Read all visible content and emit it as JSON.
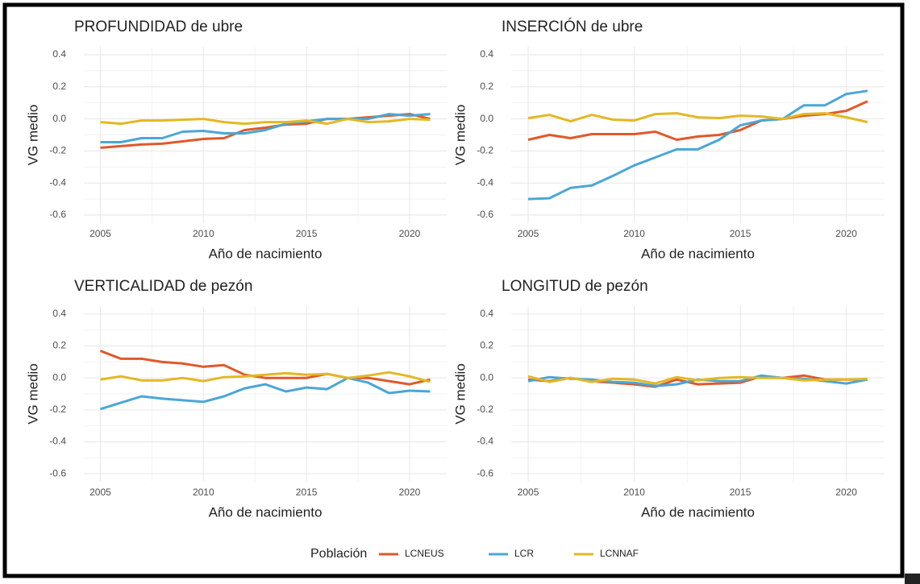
{
  "chart_data": [
    {
      "type": "line",
      "title": "PROFUNDIDAD de ubre",
      "xlabel": "Año de nacimiento",
      "ylabel": "VG medio",
      "x": [
        2005,
        2006,
        2007,
        2008,
        2009,
        2010,
        2011,
        2012,
        2013,
        2014,
        2015,
        2016,
        2017,
        2018,
        2019,
        2020,
        2021
      ],
      "xlim": [
        2004.2,
        2021.8
      ],
      "xticks": [
        2005,
        2010,
        2015,
        2020
      ],
      "ylim": [
        -0.65,
        0.45
      ],
      "yticks": [
        0.4,
        0.2,
        {
          "value": 0,
          "label": "0.0"
        },
        -0.2,
        -0.4,
        -0.6
      ],
      "grid": true,
      "minor_grid": true,
      "series": [
        {
          "values": [
            -0.18,
            -0.17,
            -0.16,
            -0.155,
            -0.14,
            -0.125,
            -0.12,
            -0.07,
            -0.055,
            -0.035,
            -0.03,
            0.0,
            0.0,
            0.01,
            0.02,
            0.03,
            0.0
          ]
        },
        {
          "values": [
            -0.145,
            -0.145,
            -0.12,
            -0.12,
            -0.08,
            -0.075,
            -0.09,
            -0.09,
            -0.07,
            -0.03,
            -0.015,
            0.0,
            0.0,
            0.0,
            0.03,
            0.02,
            0.03
          ]
        },
        {
          "values": [
            -0.02,
            -0.03,
            -0.01,
            -0.01,
            -0.005,
            0.0,
            -0.02,
            -0.03,
            -0.02,
            -0.02,
            -0.01,
            -0.03,
            0.0,
            -0.02,
            -0.015,
            0.0,
            -0.005
          ]
        }
      ]
    },
    {
      "type": "line",
      "title": "INSERCIÓN de ubre",
      "xlabel": "Año de nacimiento",
      "ylabel": "VG medio",
      "x": [
        2005,
        2006,
        2007,
        2008,
        2009,
        2010,
        2011,
        2012,
        2013,
        2014,
        2015,
        2016,
        2017,
        2018,
        2019,
        2020,
        2021
      ],
      "xlim": [
        2004.2,
        2021.8
      ],
      "xticks": [
        2005,
        2010,
        2015,
        2020
      ],
      "ylim": [
        -0.65,
        0.45
      ],
      "yticks": [
        0.4,
        0.2,
        {
          "value": 0,
          "label": "0.0"
        },
        -0.2,
        -0.4,
        -0.6
      ],
      "grid": true,
      "minor_grid": true,
      "series": [
        {
          "values": [
            -0.13,
            -0.1,
            -0.12,
            -0.095,
            -0.095,
            -0.095,
            -0.08,
            -0.13,
            -0.11,
            -0.1,
            -0.07,
            -0.01,
            0.0,
            0.02,
            0.03,
            0.05,
            0.11
          ]
        },
        {
          "values": [
            -0.5,
            -0.495,
            -0.43,
            -0.415,
            -0.355,
            -0.29,
            -0.24,
            -0.19,
            -0.19,
            -0.13,
            -0.04,
            -0.01,
            0.0,
            0.085,
            0.085,
            0.155,
            0.175
          ]
        },
        {
          "values": [
            0.005,
            0.025,
            -0.015,
            0.025,
            -0.005,
            -0.01,
            0.03,
            0.035,
            0.01,
            0.005,
            0.02,
            0.015,
            0.0,
            0.03,
            0.035,
            0.01,
            -0.02
          ]
        }
      ]
    },
    {
      "type": "line",
      "title": "VERTICALIDAD de pezón",
      "xlabel": "Año de nacimiento",
      "ylabel": "VG medio",
      "x": [
        2005,
        2006,
        2007,
        2008,
        2009,
        2010,
        2011,
        2012,
        2013,
        2014,
        2015,
        2016,
        2017,
        2018,
        2019,
        2020,
        2021
      ],
      "xlim": [
        2004.2,
        2021.8
      ],
      "xticks": [
        2005,
        2010,
        2015,
        2020
      ],
      "ylim": [
        -0.65,
        0.45
      ],
      "yticks": [
        0.4,
        0.2,
        {
          "value": 0,
          "label": "0.0"
        },
        -0.2,
        -0.4,
        -0.6
      ],
      "grid": true,
      "minor_grid": true,
      "series": [
        {
          "values": [
            0.17,
            0.12,
            0.12,
            0.1,
            0.09,
            0.07,
            0.08,
            0.02,
            0.0,
            0.0,
            0.0,
            0.025,
            0.0,
            0.0,
            -0.02,
            -0.04,
            -0.01
          ]
        },
        {
          "values": [
            -0.195,
            -0.155,
            -0.115,
            -0.13,
            -0.14,
            -0.15,
            -0.115,
            -0.065,
            -0.04,
            -0.085,
            -0.06,
            -0.07,
            0.0,
            -0.03,
            -0.095,
            -0.08,
            -0.085
          ]
        },
        {
          "values": [
            -0.01,
            0.01,
            -0.015,
            -0.015,
            0.0,
            -0.02,
            0.005,
            0.01,
            0.02,
            0.03,
            0.02,
            0.025,
            0.0,
            0.015,
            0.035,
            0.01,
            -0.025
          ]
        }
      ]
    },
    {
      "type": "line",
      "title": "LONGITUD de pezón",
      "xlabel": "Año de nacimiento",
      "ylabel": "VG medio",
      "x": [
        2005,
        2006,
        2007,
        2008,
        2009,
        2010,
        2011,
        2012,
        2013,
        2014,
        2015,
        2016,
        2017,
        2018,
        2019,
        2020,
        2021
      ],
      "xlim": [
        2004.2,
        2021.8
      ],
      "xticks": [
        2005,
        2010,
        2015,
        2020
      ],
      "ylim": [
        -0.65,
        0.45
      ],
      "yticks": [
        0.4,
        0.2,
        {
          "value": 0,
          "label": "0.0"
        },
        -0.2,
        -0.4,
        -0.6
      ],
      "grid": true,
      "minor_grid": true,
      "series": [
        {
          "values": [
            -0.01,
            -0.02,
            0.0,
            -0.02,
            -0.03,
            -0.04,
            -0.055,
            -0.01,
            -0.04,
            -0.035,
            -0.03,
            0.01,
            0.0,
            0.015,
            -0.01,
            -0.01,
            -0.01
          ]
        },
        {
          "values": [
            -0.02,
            0.005,
            -0.005,
            -0.01,
            -0.025,
            -0.03,
            -0.05,
            -0.04,
            -0.01,
            -0.02,
            -0.02,
            0.015,
            0.0,
            -0.005,
            -0.02,
            -0.035,
            -0.01
          ]
        },
        {
          "values": [
            0.01,
            -0.025,
            0.0,
            -0.025,
            -0.005,
            -0.01,
            -0.035,
            0.005,
            -0.015,
            0.0,
            0.005,
            0.0,
            0.0,
            -0.015,
            -0.01,
            -0.01,
            -0.005
          ]
        }
      ]
    }
  ],
  "legend": {
    "title": "Población",
    "position": "bottom",
    "series": [
      {
        "name": "LCNEUS",
        "color": "#e0592a"
      },
      {
        "name": "LCR",
        "color": "#4ba6d6"
      },
      {
        "name": "LCNNAF",
        "color": "#e3b823"
      }
    ]
  }
}
